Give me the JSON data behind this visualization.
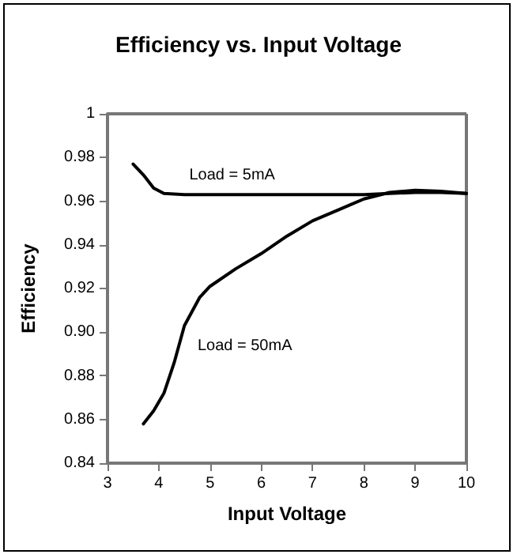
{
  "chart_data": {
    "type": "line",
    "title": "Efficiency vs. Input Voltage",
    "xlabel": "Input Voltage",
    "ylabel": "Efficiency",
    "xlim": [
      3,
      10
    ],
    "xticks": [
      3,
      4,
      5,
      6,
      7,
      8,
      9,
      10
    ],
    "ylim": [
      0.84,
      1
    ],
    "yticks": [
      0.84,
      0.86,
      0.88,
      {
        "value": 0.9,
        "label": "0.90"
      },
      0.92,
      0.94,
      0.96,
      0.98,
      1
    ],
    "grid": false,
    "legend": false,
    "marker": "none",
    "line_style": "solid",
    "series": [
      {
        "name": "Load = 5mA",
        "color": "#000000",
        "x": [
          3.5,
          3.7,
          3.9,
          4.1,
          4.5,
          5,
          6,
          7,
          8,
          8.5,
          9,
          9.5,
          10
        ],
        "values": [
          0.977,
          0.972,
          0.966,
          0.9635,
          0.963,
          0.963,
          0.963,
          0.963,
          0.963,
          0.9635,
          0.964,
          0.964,
          0.9635
        ]
      },
      {
        "name": "Load = 50mA",
        "color": "#000000",
        "x": [
          3.7,
          3.9,
          4.1,
          4.3,
          4.5,
          4.8,
          5,
          5.5,
          6,
          6.5,
          7,
          7.5,
          8,
          8.5,
          9,
          9.5,
          10
        ],
        "values": [
          0.858,
          0.864,
          0.872,
          0.886,
          0.903,
          0.916,
          0.921,
          0.929,
          0.936,
          0.944,
          0.951,
          0.956,
          0.961,
          0.964,
          0.965,
          0.9645,
          0.9635
        ]
      }
    ]
  }
}
